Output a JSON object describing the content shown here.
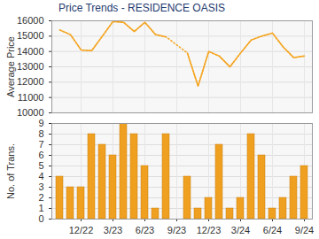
{
  "chart_data": [
    {
      "type": "line",
      "title": "Price Trends - RESIDENCE OASIS",
      "ylabel": "Average Price",
      "categories": [
        null,
        null,
        "12/22",
        null,
        null,
        "3/23",
        null,
        null,
        "6/23",
        null,
        null,
        "9/23",
        null,
        null,
        "12/23",
        null,
        null,
        "3/24",
        null,
        null,
        "6/24",
        null,
        null,
        "9/24"
      ],
      "values": [
        15400,
        15100,
        14100,
        14050,
        15000,
        15950,
        15900,
        15300,
        15900,
        15100,
        14950,
        null,
        13900,
        11750,
        14000,
        13700,
        13000,
        13900,
        14750,
        15000,
        15200,
        14300,
        13600,
        13700
      ],
      "color": "#f5a623",
      "line_style": "solid",
      "ylim": [
        10000,
        16000
      ],
      "yticks": [
        10000,
        11000,
        12000,
        13000,
        14000,
        15000,
        16000
      ],
      "grid": true,
      "tick_labels": "y"
    },
    {
      "type": "bar",
      "ylabel": "No. of Trans.",
      "categories": [
        null,
        null,
        "12/22",
        null,
        null,
        "3/23",
        null,
        null,
        "6/23",
        null,
        null,
        "9/23",
        null,
        null,
        "12/23",
        null,
        null,
        "3/24",
        null,
        null,
        "6/24",
        null,
        null,
        "9/24"
      ],
      "values": [
        4,
        3,
        3,
        8,
        7,
        6,
        9,
        8,
        5,
        1,
        8,
        0,
        4,
        1,
        2,
        7,
        1,
        2,
        8,
        6,
        1,
        2,
        4,
        5
      ],
      "color": "#f0a020",
      "ylim": [
        0,
        9
      ],
      "yticks": [
        0,
        1,
        2,
        3,
        4,
        5,
        6,
        7,
        8,
        9
      ],
      "grid": true
    }
  ]
}
